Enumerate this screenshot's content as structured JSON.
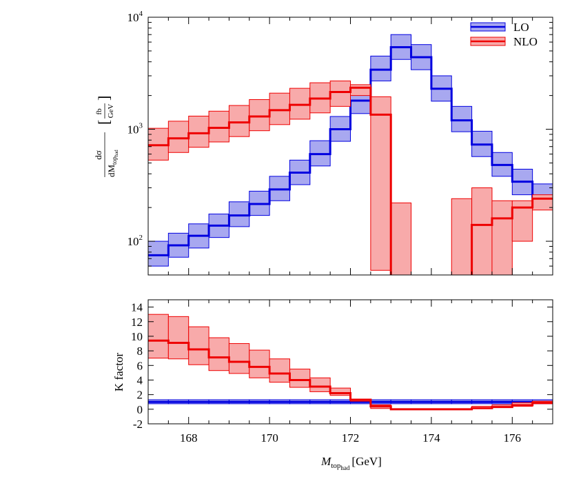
{
  "chart_data": [
    {
      "type": "line",
      "scale": "log",
      "ylim": [
        50,
        10000
      ],
      "xlim": [
        167,
        177
      ],
      "grid": false,
      "legend_position": "top-right",
      "ylabel_num": "dσ",
      "ylabel_den_prefix": "dM",
      "ylabel_den_sub": "top",
      "ylabel_den_subsub": "had",
      "ylabel_unit_num": "fb",
      "ylabel_unit_den": "GeV",
      "ytick_labels": [
        "10",
        "10",
        "10"
      ],
      "ytick_exponents": [
        "2",
        "3",
        "4"
      ],
      "ytick_values": [
        100,
        1000,
        10000
      ],
      "bin_edges": [
        167,
        167.5,
        168,
        168.5,
        169,
        169.5,
        170,
        170.5,
        171,
        171.5,
        172,
        172.5,
        173,
        173.5,
        174,
        174.5,
        175,
        175.5,
        176,
        176.5,
        177
      ],
      "series": [
        {
          "name": "LO",
          "color": "#0000e0",
          "fill": "#a8a8f0",
          "central": [
            75,
            92,
            112,
            138,
            170,
            215,
            290,
            410,
            600,
            1000,
            1800,
            3400,
            5400,
            4400,
            2300,
            1200,
            730,
            480,
            340,
            250
          ],
          "upper": [
            100,
            118,
            143,
            175,
            225,
            280,
            380,
            530,
            790,
            1300,
            2300,
            4500,
            7000,
            5700,
            3000,
            1600,
            960,
            620,
            440,
            325
          ],
          "lower": [
            60,
            72,
            87,
            108,
            135,
            170,
            230,
            320,
            470,
            780,
            1380,
            2700,
            4200,
            3400,
            1780,
            950,
            570,
            380,
            260,
            195
          ]
        },
        {
          "name": "NLO",
          "color": "#ee0000",
          "fill": "#f8aaaa",
          "central": [
            720,
            830,
            920,
            1030,
            1150,
            1300,
            1480,
            1650,
            1880,
            2150,
            2350,
            1350,
            30,
            30,
            30,
            30,
            140,
            160,
            200,
            240
          ],
          "upper": [
            1020,
            1180,
            1310,
            1450,
            1630,
            1840,
            2100,
            2320,
            2600,
            2700,
            2500,
            1950,
            220,
            30,
            30,
            240,
            300,
            230,
            230,
            260
          ],
          "lower": [
            530,
            620,
            690,
            770,
            860,
            970,
            1100,
            1230,
            1400,
            1600,
            2000,
            55,
            30,
            30,
            30,
            30,
            30,
            30,
            100,
            190
          ],
          "drawn_bins": [
            0,
            1,
            2,
            3,
            4,
            5,
            6,
            7,
            8,
            9,
            10,
            11,
            12,
            15,
            16,
            17,
            18,
            19
          ]
        }
      ]
    },
    {
      "type": "line",
      "xlim": [
        167,
        177
      ],
      "ylim": [
        -2,
        15
      ],
      "grid": false,
      "ylabel": "K factor",
      "xlabel_prefix": "M",
      "xlabel_sub": "top",
      "xlabel_subsub": "had",
      "xlabel_unit": "[GeV]",
      "xticks": [
        168,
        170,
        172,
        174,
        176
      ],
      "xtick_labels": [
        "168",
        "170",
        "172",
        "174",
        "176"
      ],
      "yticks": [
        -2,
        0,
        2,
        4,
        6,
        8,
        10,
        12,
        14
      ],
      "ytick_labels": [
        "-2",
        "0",
        "2",
        "4",
        "6",
        "8",
        "10",
        "12",
        "14"
      ],
      "bin_edges": [
        167,
        167.5,
        168,
        168.5,
        169,
        169.5,
        170,
        170.5,
        171,
        171.5,
        172,
        172.5,
        173,
        173.5,
        174,
        174.5,
        175,
        175.5,
        176,
        176.5,
        177
      ],
      "series": [
        {
          "name": "LO",
          "color": "#0000e0",
          "fill": "#a8a8f0",
          "central": [
            1,
            1,
            1,
            1,
            1,
            1,
            1,
            1,
            1,
            1,
            1,
            1,
            1,
            1,
            1,
            1,
            1,
            1,
            1,
            1
          ],
          "upper": [
            1.3,
            1.3,
            1.3,
            1.3,
            1.3,
            1.3,
            1.3,
            1.3,
            1.3,
            1.3,
            1.3,
            1.3,
            1.3,
            1.3,
            1.3,
            1.3,
            1.3,
            1.3,
            1.3,
            1.3
          ],
          "lower": [
            0.75,
            0.75,
            0.75,
            0.75,
            0.75,
            0.75,
            0.75,
            0.75,
            0.75,
            0.75,
            0.75,
            0.75,
            0.75,
            0.75,
            0.75,
            0.75,
            0.75,
            0.75,
            0.75,
            0.75
          ]
        },
        {
          "name": "NLO",
          "color": "#ee0000",
          "fill": "#f8aaaa",
          "central": [
            9.4,
            9.1,
            8.2,
            7.1,
            6.5,
            5.8,
            4.9,
            4.0,
            3.1,
            2.2,
            1.3,
            0.4,
            0.0,
            0.0,
            0.0,
            0.0,
            0.15,
            0.3,
            0.55,
            0.9
          ],
          "upper": [
            13.0,
            12.7,
            11.3,
            9.8,
            9.0,
            8.1,
            6.9,
            5.5,
            4.3,
            2.9,
            1.4,
            0.6,
            0.05,
            0.0,
            0.0,
            0.0,
            0.4,
            0.6,
            0.9,
            1.1
          ],
          "lower": [
            7.0,
            6.9,
            6.1,
            5.3,
            4.9,
            4.3,
            3.7,
            3.0,
            2.4,
            1.9,
            1.1,
            0.1,
            0.0,
            0.0,
            0.0,
            0.0,
            0.1,
            0.25,
            0.4,
            0.75
          ]
        }
      ]
    }
  ]
}
